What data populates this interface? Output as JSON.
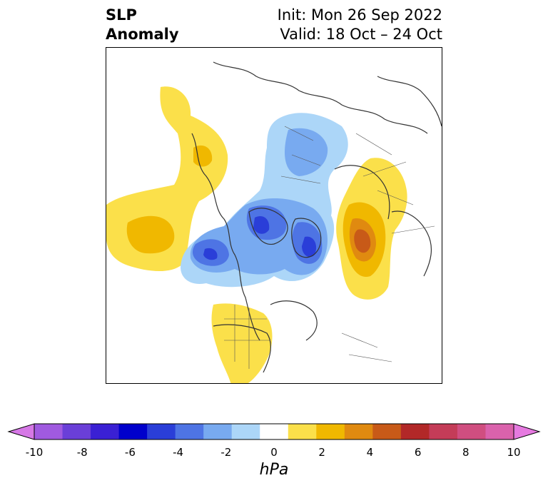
{
  "title": {
    "left_line1": "SLP",
    "left_line2": "Anomaly",
    "right_line1": "Init: Mon 26 Sep 2022",
    "right_line2": "Valid: 18 Oct – 24 Oct"
  },
  "colorbar": {
    "unit": "hPa",
    "ticks": [
      "-10",
      "-8",
      "-6",
      "-4",
      "-2",
      "0",
      "2",
      "4",
      "6",
      "8",
      "10"
    ],
    "extend": "both",
    "colors": [
      "#d678e6",
      "#a05ae0",
      "#6a3fd8",
      "#3a20d4",
      "#0000cc",
      "#2a3ed8",
      "#4e74e4",
      "#78aaf0",
      "#acd6f8",
      "#ffffff",
      "#fbe04a",
      "#f0b800",
      "#e08a10",
      "#c85a18",
      "#b22828",
      "#c43c58",
      "#d04e80",
      "#da62ac",
      "#e67ae0"
    ]
  },
  "map": {
    "projection": "north-polar-stereographic",
    "anomaly_colors": {
      "weak_negative": "#acd6f8",
      "moderate_negative": "#78aaf0",
      "strong_negative": "#4e74e4",
      "very_strong_negative": "#2a3ed8",
      "weak_positive": "#fbe04a",
      "moderate_positive": "#f0b800",
      "strong_positive": "#e08a10",
      "very_strong_positive": "#c85a18"
    }
  }
}
